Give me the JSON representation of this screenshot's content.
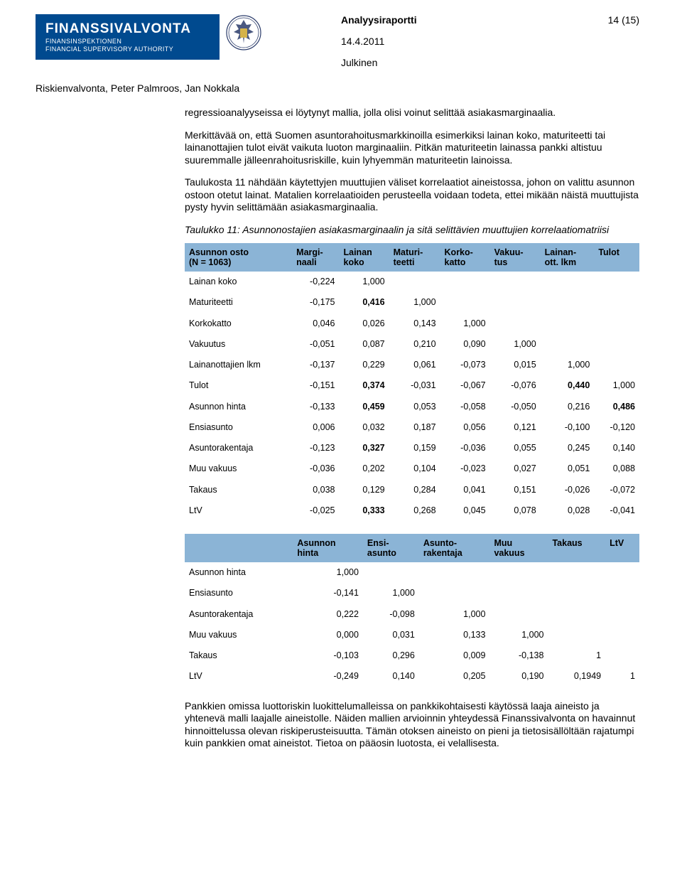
{
  "header": {
    "org_line1": "FINANSSIVALVONTA",
    "org_line2": "FINANSINSPEKTIONEN",
    "org_line3": "FINANCIAL SUPERVISORY AUTHORITY",
    "doc_title": "Analyysiraportti",
    "page_indicator": "14 (15)",
    "date": "14.4.2011",
    "classification": "Julkinen",
    "authors": "Riskienvalvonta, Peter Palmroos, Jan Nokkala"
  },
  "paragraphs": {
    "p1": "regressioanalyyseissa ei löytynyt mallia, jolla olisi voinut selittää asiakasmarginaalia.",
    "p2": "Merkittävää on, että Suomen asuntorahoitusmarkkinoilla esimerkiksi lainan koko, maturiteetti tai lainanottajien tulot eivät vaikuta luoton marginaaliin. Pitkän maturiteetin lainassa pankki altistuu suuremmalle jälleenrahoitusriskille, kuin lyhyemmän maturiteetin lainoissa.",
    "p3": "Taulukosta 11 nähdään käytettyjen muuttujien väliset korrelaatiot aineistossa, johon on valittu asunnon ostoon otetut lainat. Matalien korrelaatioiden perusteella voidaan todeta, ettei mikään näistä muuttujista pysty hyvin selittämään asiakasmarginaalia.",
    "caption": "Taulukko 11: Asunnonostajien asiakasmarginaalin ja sitä selittävien muuttujien korrelaatiomatriisi",
    "p4": "Pankkien omissa luottoriskin luokittelumalleissa on pankkikohtaisesti käytössä laaja aineisto ja yhtenevä malli laajalle aineistolle. Näiden mallien arvioinnin yhteydessä Finanssivalvonta on havainnut hinnoittelussa olevan riskiperusteisuutta. Tämän otoksen aineisto on pieni ja tietosisällöltään rajatumpi kuin pankkien omat aineistot. Tietoa on pääosin luotosta, ei velallisesta."
  },
  "table1": {
    "header_bg": "#8bb4d6",
    "columns": [
      "Asunnon osto (N = 1063)",
      "Marginaali",
      "Lainan koko",
      "Maturiteetti",
      "Korkokatto",
      "Vakuutus",
      "Lainanott. lkm",
      "Tulot"
    ],
    "col_line1": [
      "Asunnon osto",
      "Margi-",
      "Lainan",
      "Maturi-",
      "Korko-",
      "Vakuu-",
      "Lainan-",
      "Tulot"
    ],
    "col_line2": [
      "(N = 1063)",
      "naali",
      "koko",
      "teetti",
      "katto",
      "tus",
      "ott. lkm",
      ""
    ],
    "rows": [
      {
        "label": "Lainan koko",
        "vals": [
          "-0,224",
          "1,000",
          "",
          "",
          "",
          "",
          ""
        ],
        "bold": [
          false,
          false,
          false,
          false,
          false,
          false,
          false
        ]
      },
      {
        "label": "Maturiteetti",
        "vals": [
          "-0,175",
          "0,416",
          "1,000",
          "",
          "",
          "",
          ""
        ],
        "bold": [
          false,
          true,
          false,
          false,
          false,
          false,
          false
        ]
      },
      {
        "label": "Korkokatto",
        "vals": [
          "0,046",
          "0,026",
          "0,143",
          "1,000",
          "",
          "",
          ""
        ],
        "bold": [
          false,
          false,
          false,
          false,
          false,
          false,
          false
        ]
      },
      {
        "label": "Vakuutus",
        "vals": [
          "-0,051",
          "0,087",
          "0,210",
          "0,090",
          "1,000",
          "",
          ""
        ],
        "bold": [
          false,
          false,
          false,
          false,
          false,
          false,
          false
        ]
      },
      {
        "label": "Lainanottajien lkm",
        "vals": [
          "-0,137",
          "0,229",
          "0,061",
          "-0,073",
          "0,015",
          "1,000",
          ""
        ],
        "bold": [
          false,
          false,
          false,
          false,
          false,
          false,
          false
        ]
      },
      {
        "label": "Tulot",
        "vals": [
          "-0,151",
          "0,374",
          "-0,031",
          "-0,067",
          "-0,076",
          "0,440",
          "1,000"
        ],
        "bold": [
          false,
          true,
          false,
          false,
          false,
          true,
          false
        ]
      },
      {
        "label": "Asunnon hinta",
        "vals": [
          "-0,133",
          "0,459",
          "0,053",
          "-0,058",
          "-0,050",
          "0,216",
          "0,486"
        ],
        "bold": [
          false,
          true,
          false,
          false,
          false,
          false,
          true
        ]
      },
      {
        "label": "Ensiasunto",
        "vals": [
          "0,006",
          "0,032",
          "0,187",
          "0,056",
          "0,121",
          "-0,100",
          "-0,120"
        ],
        "bold": [
          false,
          false,
          false,
          false,
          false,
          false,
          false
        ]
      },
      {
        "label": "Asuntorakentaja",
        "vals": [
          "-0,123",
          "0,327",
          "0,159",
          "-0,036",
          "0,055",
          "0,245",
          "0,140"
        ],
        "bold": [
          false,
          true,
          false,
          false,
          false,
          false,
          false
        ]
      },
      {
        "label": "Muu vakuus",
        "vals": [
          "-0,036",
          "0,202",
          "0,104",
          "-0,023",
          "0,027",
          "0,051",
          "0,088"
        ],
        "bold": [
          false,
          false,
          false,
          false,
          false,
          false,
          false
        ]
      },
      {
        "label": "Takaus",
        "vals": [
          "0,038",
          "0,129",
          "0,284",
          "0,041",
          "0,151",
          "-0,026",
          "-0,072"
        ],
        "bold": [
          false,
          false,
          false,
          false,
          false,
          false,
          false
        ]
      },
      {
        "label": "LtV",
        "vals": [
          "-0,025",
          "0,333",
          "0,268",
          "0,045",
          "0,078",
          "0,028",
          "-0,041"
        ],
        "bold": [
          false,
          true,
          false,
          false,
          false,
          false,
          false
        ]
      }
    ]
  },
  "table2": {
    "header_bg": "#8bb4d6",
    "col_line1": [
      "",
      "Asunnon",
      "Ensi-",
      "Asunto-",
      "Muu",
      "Takaus",
      "LtV"
    ],
    "col_line2": [
      "",
      "hinta",
      "asunto",
      "rakentaja",
      "vakuus",
      "",
      ""
    ],
    "rows": [
      {
        "label": "Asunnon hinta",
        "vals": [
          "1,000",
          "",
          "",
          "",
          "",
          ""
        ]
      },
      {
        "label": "Ensiasunto",
        "vals": [
          "-0,141",
          "1,000",
          "",
          "",
          "",
          ""
        ]
      },
      {
        "label": "Asuntorakentaja",
        "vals": [
          "0,222",
          "-0,098",
          "1,000",
          "",
          "",
          ""
        ]
      },
      {
        "label": "Muu vakuus",
        "vals": [
          "0,000",
          "0,031",
          "0,133",
          "1,000",
          "",
          ""
        ]
      },
      {
        "label": "Takaus",
        "vals": [
          "-0,103",
          "0,296",
          "0,009",
          "-0,138",
          "1",
          ""
        ]
      },
      {
        "label": "LtV",
        "vals": [
          "-0,249",
          "0,140",
          "0,205",
          "0,190",
          "0,1949",
          "1"
        ]
      }
    ]
  },
  "colors": {
    "banner_bg": "#004a8f",
    "banner_text": "#ffffff",
    "table_header_bg": "#8bb4d6",
    "text": "#000000",
    "page_bg": "#ffffff"
  }
}
